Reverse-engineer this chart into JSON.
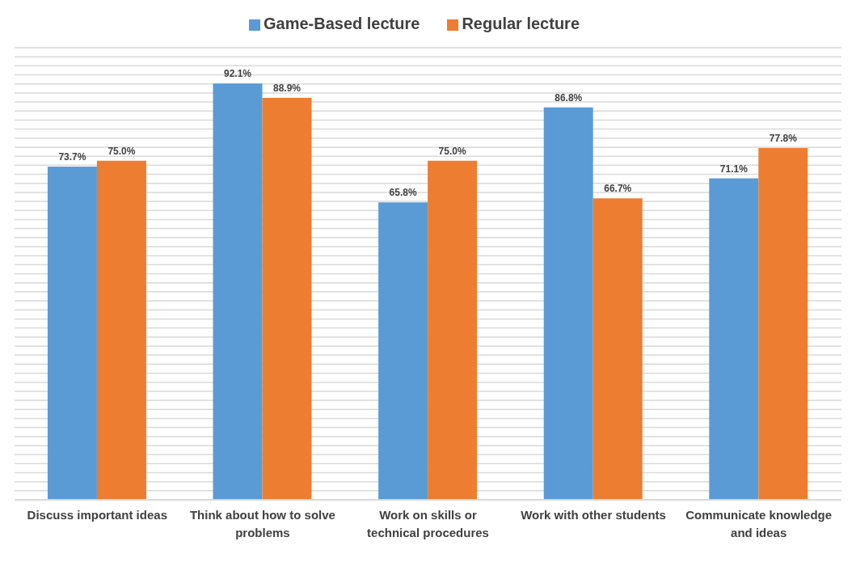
{
  "chart_data": {
    "type": "bar",
    "categories": [
      "Discuss important ideas",
      "Think about how to solve problems",
      "Work on skills or technical procedures",
      "Work with other students",
      "Communicate knowledge and ideas"
    ],
    "series": [
      {
        "name": "Game-Based lecture",
        "color": "#5b9bd5",
        "values": [
          73.7,
          92.1,
          65.8,
          86.8,
          71.1
        ],
        "value_labels": [
          "73.7%",
          "92.1%",
          "65.8%",
          "86.8%",
          "71.1%"
        ]
      },
      {
        "name": "Regular lecture",
        "color": "#ed7d31",
        "values": [
          75.0,
          88.9,
          75.0,
          66.7,
          77.8
        ],
        "value_labels": [
          "75.0%",
          "88.9%",
          "75.0%",
          "66.7%",
          "77.8%"
        ]
      }
    ],
    "ylim": [
      0,
      100
    ],
    "yticks": [
      {
        "value": 0,
        "label": null
      },
      {
        "value": 2,
        "label": null
      },
      {
        "value": 4,
        "label": null
      },
      {
        "value": 6,
        "label": null
      },
      {
        "value": 8,
        "label": null
      },
      {
        "value": 10,
        "label": null
      },
      {
        "value": 12,
        "label": null
      },
      {
        "value": 14,
        "label": null
      },
      {
        "value": 16,
        "label": null
      },
      {
        "value": 18,
        "label": null
      },
      {
        "value": 20,
        "label": null
      },
      {
        "value": 22,
        "label": null
      },
      {
        "value": 24,
        "label": null
      },
      {
        "value": 26,
        "label": null
      },
      {
        "value": 28,
        "label": null
      },
      {
        "value": 30,
        "label": null
      },
      {
        "value": 32,
        "label": null
      },
      {
        "value": 34,
        "label": null
      },
      {
        "value": 36,
        "label": null
      },
      {
        "value": 38,
        "label": null
      },
      {
        "value": 40,
        "label": null
      },
      {
        "value": 42,
        "label": null
      },
      {
        "value": 44,
        "label": null
      },
      {
        "value": 46,
        "label": null
      },
      {
        "value": 48,
        "label": null
      },
      {
        "value": 50,
        "label": null
      },
      {
        "value": 52,
        "label": null
      },
      {
        "value": 54,
        "label": null
      },
      {
        "value": 56,
        "label": null
      },
      {
        "value": 58,
        "label": null
      },
      {
        "value": 60,
        "label": null
      },
      {
        "value": 62,
        "label": null
      },
      {
        "value": 64,
        "label": null
      },
      {
        "value": 66,
        "label": null
      },
      {
        "value": 68,
        "label": null
      },
      {
        "value": 70,
        "label": null
      },
      {
        "value": 72,
        "label": null
      },
      {
        "value": 74,
        "label": null
      },
      {
        "value": 76,
        "label": null
      },
      {
        "value": 78,
        "label": null
      },
      {
        "value": 80,
        "label": null
      },
      {
        "value": 82,
        "label": null
      },
      {
        "value": 84,
        "label": null
      },
      {
        "value": 86,
        "label": null
      },
      {
        "value": 88,
        "label": null
      },
      {
        "value": 90,
        "label": null
      },
      {
        "value": 92,
        "label": null
      },
      {
        "value": 94,
        "label": null
      },
      {
        "value": 96,
        "label": null
      },
      {
        "value": 98,
        "label": null
      },
      {
        "value": 100,
        "label": null
      }
    ],
    "tick_labels": "x",
    "grid": "y",
    "legend": "top"
  }
}
